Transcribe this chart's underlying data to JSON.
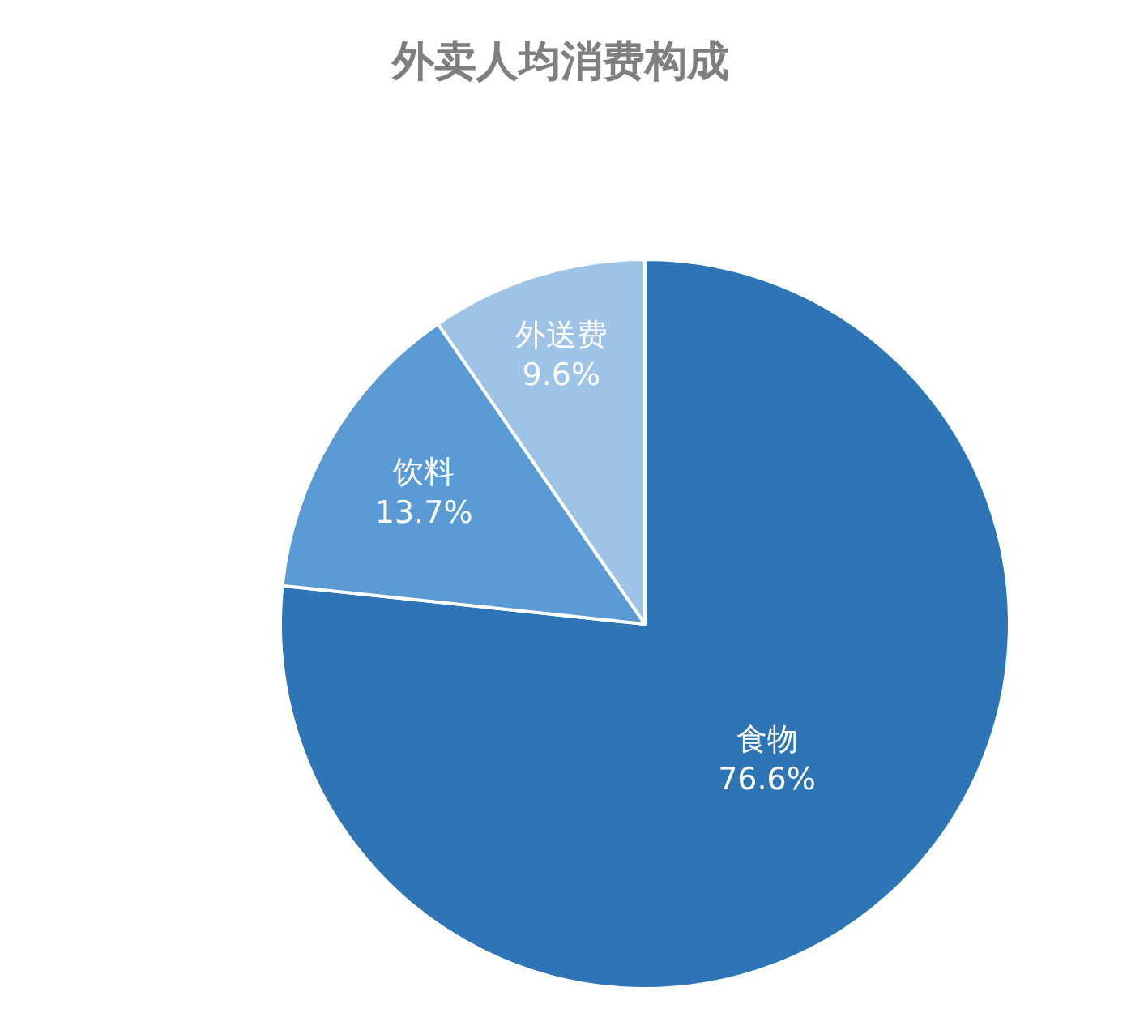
{
  "chart_data": {
    "type": "pie",
    "title": "外卖人均消费构成",
    "categories": [
      "食物",
      "饮料",
      "外送费"
    ],
    "values": [
      76.6,
      13.7,
      9.6
    ],
    "value_labels": [
      "76.6%",
      "13.7%",
      "9.6%"
    ],
    "colors": [
      "#2e75b6",
      "#5b9bd5",
      "#9dc3e6"
    ],
    "legend": false
  }
}
